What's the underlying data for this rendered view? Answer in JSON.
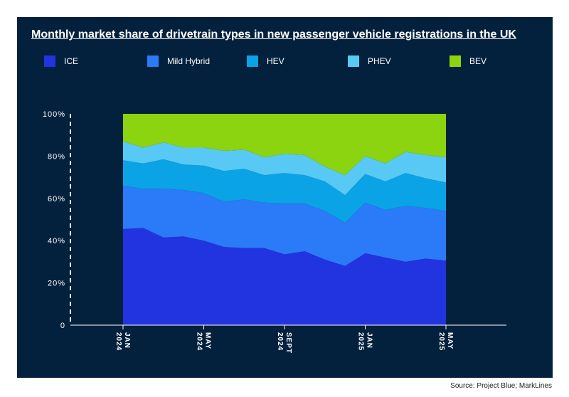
{
  "title": "Monthly market share of drivetrain types in new passenger vehicle registrations in the UK",
  "source": "Source: Project Blue; MarkLines",
  "colors": {
    "background": "#03213d",
    "ICE": "#2233e0",
    "Mild Hybrid": "#2b7af7",
    "HEV": "#0aa3e6",
    "PHEV": "#58c9f5",
    "BEV": "#8bd40f"
  },
  "chart_data": {
    "type": "area",
    "stacked": true,
    "x": [
      "2024-01",
      "2024-02",
      "2024-03",
      "2024-04",
      "2024-05",
      "2024-06",
      "2024-07",
      "2024-08",
      "2024-09",
      "2024-10",
      "2024-11",
      "2024-12",
      "2025-01",
      "2025-02",
      "2025-03",
      "2025-04",
      "2025-05"
    ],
    "x_tick_labels": [
      "JAN 2024",
      "MAY 2024",
      "SEPT 2024",
      "JAN 2025",
      "MAY 2025"
    ],
    "x_tick_indices": [
      0,
      4,
      8,
      12,
      16
    ],
    "y_tick_labels": [
      "0",
      "20%",
      "40%",
      "60%",
      "80%",
      "100%"
    ],
    "ylim": [
      0,
      100
    ],
    "legend_position": "top",
    "series": [
      {
        "name": "ICE",
        "values": [
          45.5,
          46.0,
          41.5,
          42.0,
          40.0,
          37.0,
          36.5,
          36.5,
          33.5,
          35.0,
          31.0,
          28.0,
          34.0,
          32.0,
          30.0,
          31.5,
          30.5
        ]
      },
      {
        "name": "Mild Hybrid",
        "values": [
          20.5,
          18.5,
          23.0,
          22.0,
          22.5,
          21.5,
          23.0,
          21.5,
          24.0,
          22.5,
          23.0,
          20.5,
          24.0,
          22.5,
          26.5,
          24.0,
          23.5
        ]
      },
      {
        "name": "HEV",
        "values": [
          12.0,
          12.0,
          14.0,
          12.0,
          13.0,
          14.5,
          14.5,
          13.0,
          14.5,
          13.5,
          14.0,
          13.0,
          13.5,
          13.5,
          15.5,
          14.0,
          13.5
        ]
      },
      {
        "name": "PHEV",
        "values": [
          9.0,
          7.5,
          8.0,
          8.0,
          8.5,
          9.5,
          9.0,
          8.5,
          9.0,
          9.5,
          7.0,
          9.5,
          8.5,
          8.5,
          10.0,
          11.0,
          12.0
        ]
      },
      {
        "name": "BEV",
        "values": [
          13.0,
          16.0,
          13.5,
          16.0,
          16.0,
          17.5,
          17.0,
          20.5,
          19.0,
          19.5,
          25.0,
          29.0,
          20.0,
          23.5,
          18.0,
          19.5,
          20.5
        ]
      }
    ]
  }
}
